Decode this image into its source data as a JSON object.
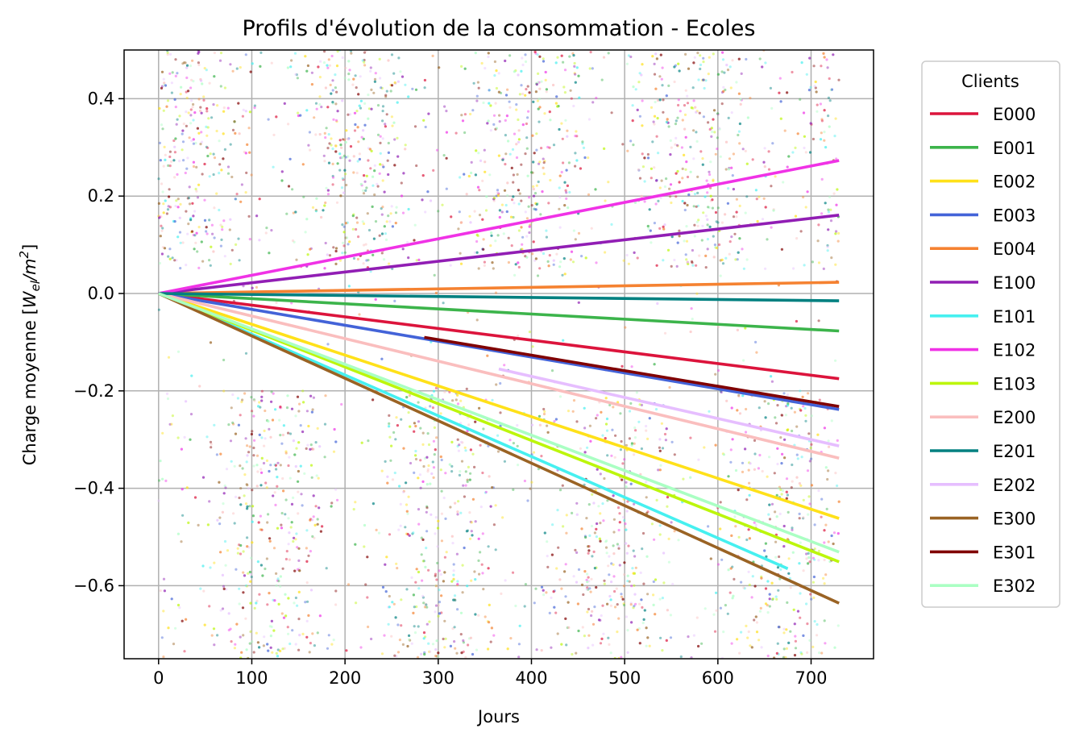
{
  "chart_data": {
    "type": "line",
    "title": "Profils d'évolution de la consommation - Ecoles",
    "xlabel": "Jours",
    "ylabel_main": "Charge moyenne [",
    "ylabel_math_W": "W",
    "ylabel_math_sub": "el",
    "ylabel_math_m": "/m",
    "ylabel_math_sup": "2",
    "ylabel_close": "]",
    "xlim": [
      -37,
      767
    ],
    "ylim": [
      -0.75,
      0.5
    ],
    "x_ticks": [
      0,
      100,
      200,
      300,
      400,
      500,
      600,
      700
    ],
    "x_tick_labels": [
      "0",
      "100",
      "200",
      "300",
      "400",
      "500",
      "600",
      "700"
    ],
    "y_ticks": [
      -0.6,
      -0.4,
      -0.2,
      0.0,
      0.2,
      0.4
    ],
    "y_tick_labels": [
      "−0.6",
      "−0.4",
      "−0.2",
      "0.0",
      "0.2",
      "0.4"
    ],
    "grid": true,
    "legend": {
      "title": "Clients",
      "placement": "outside-right"
    },
    "series": [
      {
        "name": "E000",
        "color": "#dc143c",
        "x": [
          0,
          730
        ],
        "y": [
          0.0,
          -0.175
        ]
      },
      {
        "name": "E001",
        "color": "#3cb44b",
        "x": [
          0,
          730
        ],
        "y": [
          0.0,
          -0.077
        ]
      },
      {
        "name": "E002",
        "color": "#ffe119",
        "x": [
          0,
          730
        ],
        "y": [
          0.0,
          -0.462
        ]
      },
      {
        "name": "E003",
        "color": "#4363d8",
        "x": [
          0,
          730
        ],
        "y": [
          0.0,
          -0.238
        ]
      },
      {
        "name": "E004",
        "color": "#f58231",
        "x": [
          0,
          730
        ],
        "y": [
          0.0,
          0.023
        ]
      },
      {
        "name": "E100",
        "color": "#911eb4",
        "x": [
          0,
          730
        ],
        "y": [
          0.0,
          0.161
        ]
      },
      {
        "name": "E101",
        "color": "#46f0f0",
        "x": [
          0,
          675
        ],
        "y": [
          0.0,
          -0.565
        ]
      },
      {
        "name": "E102",
        "color": "#f032e6",
        "x": [
          0,
          730
        ],
        "y": [
          0.0,
          0.273
        ]
      },
      {
        "name": "E103",
        "color": "#bcf60c",
        "x": [
          0,
          730
        ],
        "y": [
          0.0,
          -0.551
        ]
      },
      {
        "name": "E200",
        "color": "#fabebe",
        "x": [
          0,
          730
        ],
        "y": [
          0.0,
          -0.338
        ]
      },
      {
        "name": "E201",
        "color": "#008080",
        "x": [
          0,
          730
        ],
        "y": [
          0.0,
          -0.015
        ]
      },
      {
        "name": "E202",
        "color": "#e6beff",
        "x": [
          365,
          730
        ],
        "y": [
          -0.155,
          -0.313
        ]
      },
      {
        "name": "E300",
        "color": "#9a6324",
        "x": [
          0,
          730
        ],
        "y": [
          0.0,
          -0.636
        ]
      },
      {
        "name": "E301",
        "color": "#800000",
        "x": [
          285,
          730
        ],
        "y": [
          -0.09,
          -0.232
        ]
      },
      {
        "name": "E302",
        "color": "#aaffc3",
        "x": [
          0,
          730
        ],
        "y": [
          0.0,
          -0.531
        ]
      }
    ],
    "scatter": {
      "description_hidden": true,
      "x_range": [
        0,
        730
      ],
      "y_range": [
        -0.75,
        0.5
      ],
      "n_points": 4200,
      "point_opacity": 0.45
    }
  }
}
